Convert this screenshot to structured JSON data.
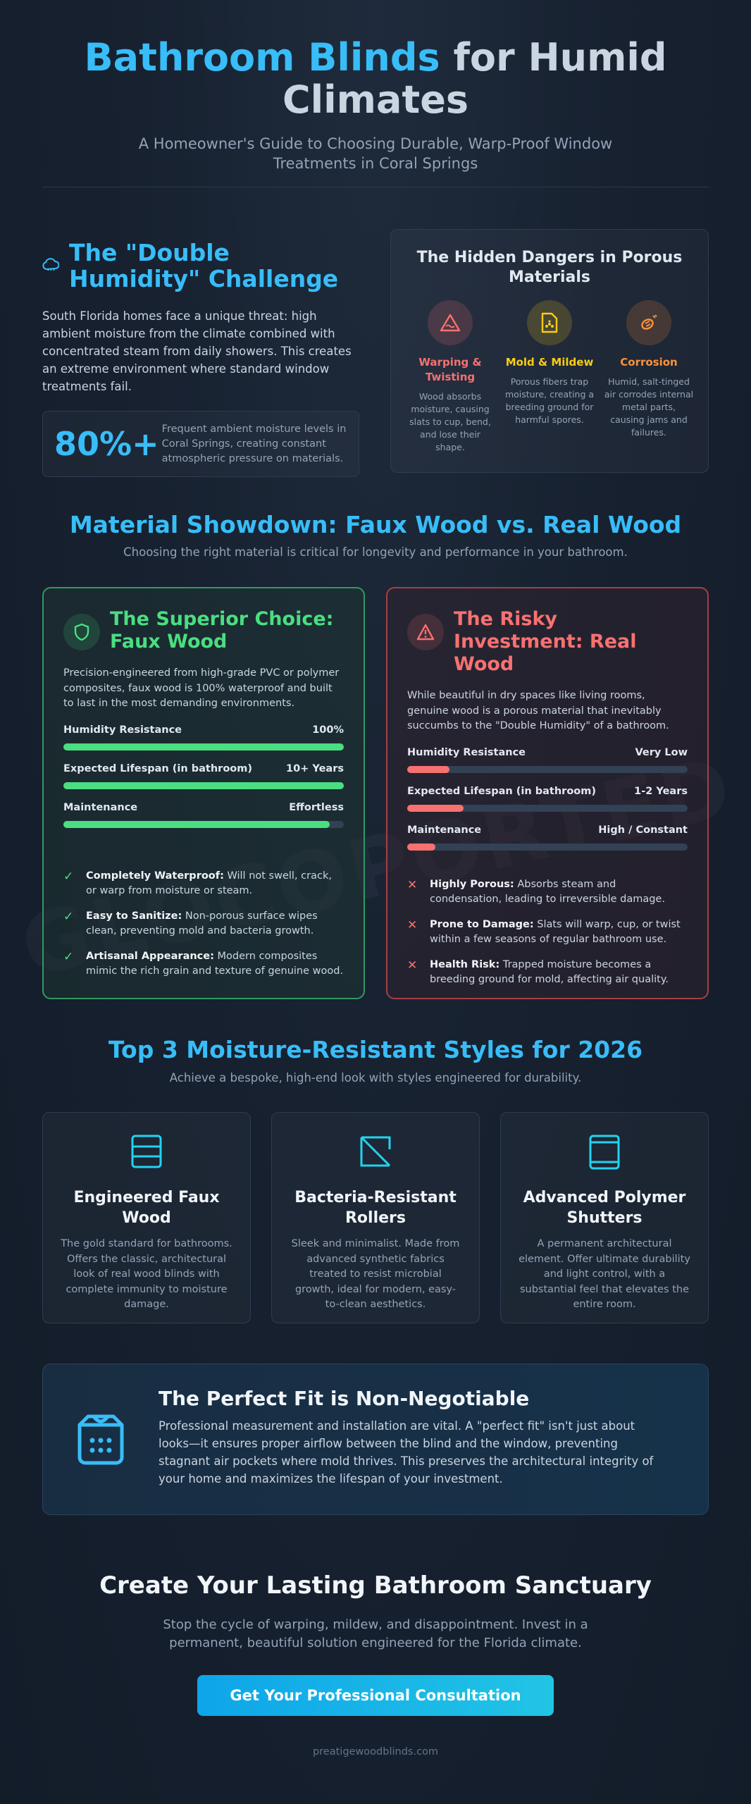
{
  "header": {
    "title_highlight": "Bathroom Blinds",
    "title_rest": " for Humid Climates",
    "subtitle": "A Homeowner's Guide to Choosing Durable, Warp-Proof Window Treatments in Coral Springs"
  },
  "double_humidity": {
    "title": "The \"Double Humidity\" Challenge",
    "body": "South Florida homes face a unique threat: high ambient moisture from the climate combined with concentrated steam from daily showers. This creates an extreme environment where standard window treatments fail.",
    "stat_value": "80%+",
    "stat_text": "Frequent ambient moisture levels in Coral Springs, creating constant atmospheric pressure on materials."
  },
  "dangers": {
    "title": "The Hidden Dangers in Porous Materials",
    "items": [
      {
        "title": "Warping & Twisting",
        "desc": "Wood absorbs moisture, causing slats to cup, bend, and lose their shape.",
        "color": "#f87171",
        "icon": "warning-triangle-icon"
      },
      {
        "title": "Mold & Mildew",
        "desc": "Porous fibers trap moisture, creating a breeding ground for harmful spores.",
        "color": "#facc15",
        "icon": "bio-file-icon"
      },
      {
        "title": "Corrosion",
        "desc": "Humid, salt-tinged air corrodes internal metal parts, causing jams and failures.",
        "color": "#fb923c",
        "icon": "rust-icon"
      }
    ]
  },
  "showdown": {
    "title": "Material Showdown: Faux Wood vs. Real Wood",
    "subtitle": "Choosing the right material is critical for longevity and performance in your bathroom.",
    "faux": {
      "title": "The Superior Choice: Faux Wood",
      "desc": "Precision-engineered from high-grade PVC or polymer composites, faux wood is 100% waterproof and built to last in the most demanding environments.",
      "color": "#4ade80",
      "meters": [
        {
          "label": "Humidity Resistance",
          "value": "100%",
          "fill": 1.0
        },
        {
          "label": "Expected Lifespan (in bathroom)",
          "value": "10+ Years",
          "fill": 1.0
        },
        {
          "label": "Maintenance",
          "value": "Effortless",
          "fill": 0.95
        }
      ],
      "points": [
        {
          "bold": "Completely Waterproof:",
          "text": " Will not swell, crack, or warp from moisture or steam."
        },
        {
          "bold": "Easy to Sanitize:",
          "text": " Non-porous surface wipes clean, preventing mold and bacteria growth."
        },
        {
          "bold": "Artisanal Appearance:",
          "text": " Modern composites mimic the rich grain and texture of genuine wood."
        }
      ]
    },
    "real": {
      "title": "The Risky Investment: Real Wood",
      "desc": "While beautiful in dry spaces like living rooms, genuine wood is a porous material that inevitably succumbs to the \"Double Humidity\" of a bathroom.",
      "color": "#f87171",
      "meters": [
        {
          "label": "Humidity Resistance",
          "value": "Very Low",
          "fill": 0.15
        },
        {
          "label": "Expected Lifespan (in bathroom)",
          "value": "1-2 Years",
          "fill": 0.2
        },
        {
          "label": "Maintenance",
          "value": "High / Constant",
          "fill": 0.1
        }
      ],
      "points": [
        {
          "bold": "Highly Porous:",
          "text": " Absorbs steam and condensation, leading to irreversible damage."
        },
        {
          "bold": "Prone to Damage:",
          "text": " Slats will warp, cup, or twist within a few seasons of regular bathroom use."
        },
        {
          "bold": "Health Risk:",
          "text": " Trapped moisture becomes a breeding ground for mold, affecting air quality."
        }
      ]
    }
  },
  "styles": {
    "title": "Top 3 Moisture-Resistant Styles for 2026",
    "subtitle": "Achieve a bespoke, high-end look with styles engineered for durability.",
    "items": [
      {
        "title": "Engineered Faux Wood",
        "desc": "The gold standard for bathrooms. Offers the classic, architectural look of real wood blinds with complete immunity to moisture damage.",
        "icon": "blinds-icon"
      },
      {
        "title": "Bacteria-Resistant Rollers",
        "desc": "Sleek and minimalist. Made from advanced synthetic fabrics treated to resist microbial growth, ideal for modern, easy-to-clean aesthetics.",
        "icon": "roller-shade-icon"
      },
      {
        "title": "Advanced Polymer Shutters",
        "desc": "A permanent architectural element. Offer ultimate durability and light control, with a substantial feel that elevates the entire room.",
        "icon": "shutters-icon"
      }
    ]
  },
  "fit": {
    "title": "The Perfect Fit is Non-Negotiable",
    "body": "Professional measurement and installation are vital. A \"perfect fit\" isn't just about looks—it ensures proper airflow between the blind and the window, preventing stagnant air pockets where mold thrives. This preserves the architectural integrity of your home and maximizes the lifespan of your investment."
  },
  "cta": {
    "title": "Create Your Lasting Bathroom Sanctuary",
    "subtitle": "Stop the cycle of warping, mildew, and disappointment. Invest in a permanent, beautiful solution engineered for the Florida climate.",
    "button": "Get Your Professional Consultation"
  },
  "footer": {
    "site": "preatigewoodblinds.com"
  },
  "watermark": "GLOCOPORTED"
}
